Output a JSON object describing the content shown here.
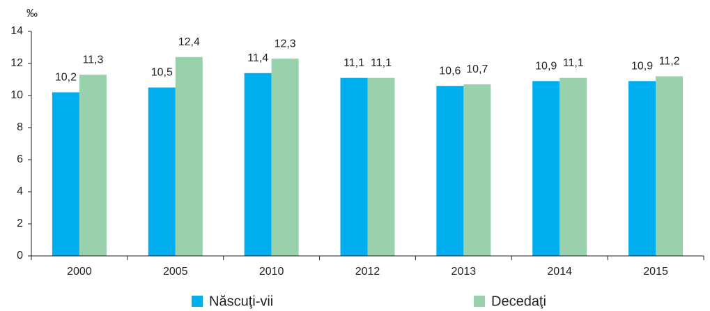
{
  "chart_data": {
    "type": "bar",
    "y_unit": "‰",
    "categories": [
      "2000",
      "2005",
      "2010",
      "2012",
      "2013",
      "2014",
      "2015"
    ],
    "series": [
      {
        "name": "Născuţi-vii",
        "color": "#00aeef",
        "values": [
          10.2,
          10.5,
          11.4,
          11.1,
          10.6,
          10.9,
          10.9
        ],
        "value_labels": [
          "10,2",
          "10,5",
          "11,4",
          "11,1",
          "10,6",
          "10,9",
          "10,9"
        ]
      },
      {
        "name": "Decedaţi",
        "color": "#99d1ac",
        "values": [
          11.3,
          12.4,
          12.3,
          11.1,
          10.7,
          11.1,
          11.2
        ],
        "value_labels": [
          "11,3",
          "12,4",
          "12,3",
          "11,1",
          "10,7",
          "11,1",
          "11,2"
        ]
      }
    ],
    "ylim": [
      0,
      14
    ],
    "yticks": [
      0,
      2,
      4,
      6,
      8,
      10,
      12,
      14
    ],
    "grid": false,
    "legend": "bottom"
  }
}
